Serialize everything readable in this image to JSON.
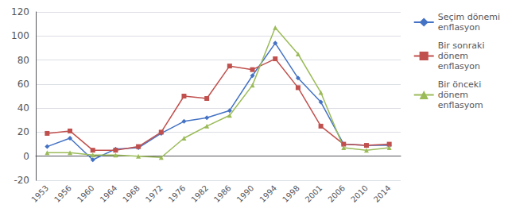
{
  "chart_data": {
    "type": "line",
    "categories": [
      "1953",
      "1956",
      "1960",
      "1964",
      "1968",
      "1972",
      "1976",
      "1982",
      "1986",
      "1990",
      "1994",
      "1998",
      "2001",
      "2006",
      "2010",
      "2014"
    ],
    "series": [
      {
        "name": "Seçim dönemi\nenflasyon",
        "color": "#4472C4",
        "marker": "diamond",
        "values": [
          8,
          15,
          -3,
          6,
          7,
          19,
          29,
          32,
          38,
          67,
          94,
          65,
          45,
          10,
          9,
          9
        ]
      },
      {
        "name": "Bir sonraki\ndönem\nenflasyon",
        "color": "#C0504D",
        "marker": "square",
        "values": [
          19,
          21,
          5,
          5,
          8,
          20,
          50,
          48,
          75,
          72,
          81,
          57,
          25,
          10,
          9,
          10
        ]
      },
      {
        "name": "Bir önceki\ndönem\nenflasyom",
        "color": "#9BBB59",
        "marker": "triangle",
        "values": [
          3,
          3,
          1,
          1,
          0,
          -1,
          15,
          25,
          34,
          59,
          107,
          85,
          53,
          7,
          5,
          7
        ]
      }
    ],
    "ylim": [
      -20,
      120
    ],
    "yticks": [
      -20,
      0,
      20,
      40,
      60,
      80,
      100,
      120
    ],
    "grid": true,
    "legend": "right"
  }
}
